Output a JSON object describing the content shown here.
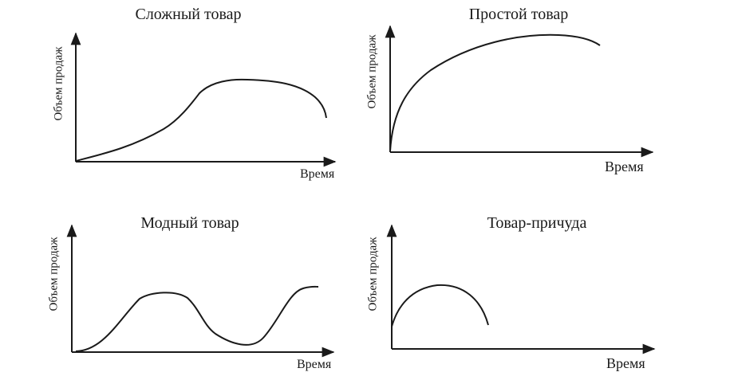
{
  "panels": {
    "complex": {
      "title": "Сложный товар",
      "ylabel": "Объем продаж",
      "xlabel": "Время"
    },
    "simple": {
      "title": "Простой товар",
      "ylabel": "Объем продаж",
      "xlabel": "Время"
    },
    "fashion": {
      "title": "Модный товар",
      "ylabel": "Объем продаж",
      "xlabel": "Время"
    },
    "fad": {
      "title": "Товар-причуда",
      "ylabel": "Объем продаж",
      "xlabel": "Время"
    }
  },
  "line_color": "#1a1a1a"
}
